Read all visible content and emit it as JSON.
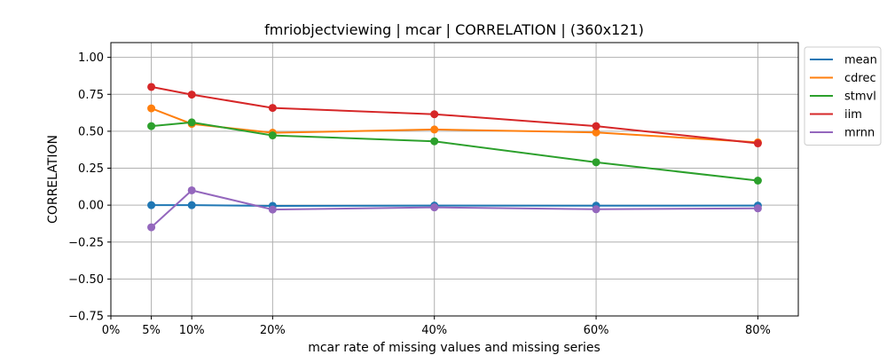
{
  "chart_data": {
    "type": "line",
    "title": "fmriobjectviewing | mcar | CORRELATION | (360x121)",
    "xlabel": "mcar rate of missing values and missing series",
    "ylabel": "CORRELATION",
    "x": [
      5,
      10,
      20,
      40,
      60,
      80
    ],
    "xlim": [
      0,
      85
    ],
    "ylim": [
      -0.75,
      1.1
    ],
    "x_ticks": [
      0,
      5,
      10,
      20,
      40,
      60,
      80
    ],
    "x_tick_labels": [
      "0%",
      "5%",
      "10%",
      "20%",
      "40%",
      "60%",
      "80%"
    ],
    "y_ticks": [
      -0.75,
      -0.5,
      -0.25,
      0.0,
      0.25,
      0.5,
      0.75,
      1.0
    ],
    "y_tick_labels": [
      "−0.75",
      "−0.50",
      "−0.25",
      "0.00",
      "0.25",
      "0.50",
      "0.75",
      "1.00"
    ],
    "grid": true,
    "legend_position": "outside-top-right",
    "series": [
      {
        "name": "mean",
        "color": "#1f77b4",
        "values": [
          0.0,
          0.0,
          -0.005,
          -0.003,
          -0.004,
          -0.003
        ]
      },
      {
        "name": "cdrec",
        "color": "#ff7f0e",
        "values": [
          0.655,
          0.55,
          0.49,
          0.512,
          0.492,
          0.425
        ]
      },
      {
        "name": "stmvl",
        "color": "#2ca02c",
        "values": [
          0.535,
          0.56,
          0.472,
          0.432,
          0.29,
          0.166
        ]
      },
      {
        "name": "iim",
        "color": "#d62728",
        "values": [
          0.8,
          0.748,
          0.658,
          0.615,
          0.535,
          0.418
        ]
      },
      {
        "name": "mrnn",
        "color": "#9467bd",
        "values": [
          -0.15,
          0.1,
          -0.03,
          -0.015,
          -0.028,
          -0.022
        ]
      }
    ]
  }
}
